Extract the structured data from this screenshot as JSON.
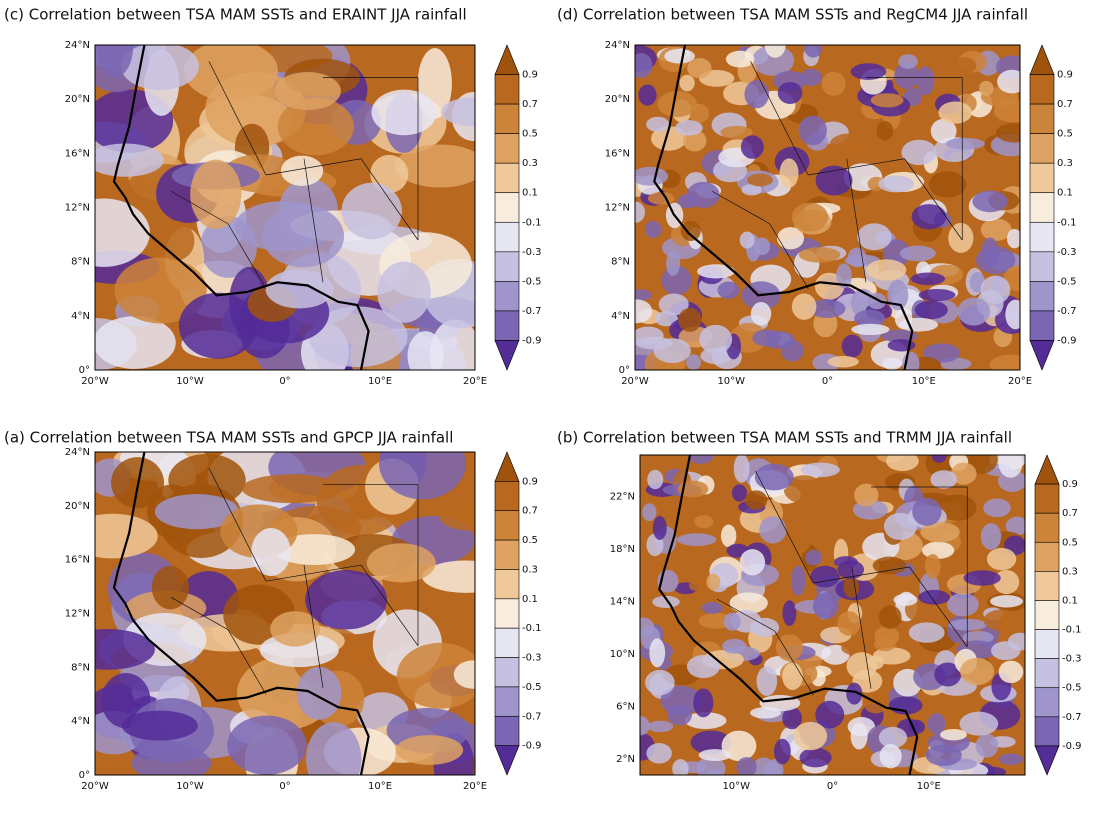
{
  "panels": [
    {
      "title": "(c) Correlation between TSA MAM SSTs and ERAINT JJA rainfall",
      "lat_labels": [
        "24°N",
        "20°N",
        "16°N",
        "12°N",
        "8°N",
        "4°N",
        "0°"
      ],
      "lon_labels": [
        "20°W",
        "10°W",
        "0°",
        "10°E",
        "20°E"
      ]
    },
    {
      "title": "(d) Correlation between TSA MAM SSTs and RegCM4 JJA rainfall",
      "lat_labels": [
        "24°N",
        "20°N",
        "16°N",
        "12°N",
        "8°N",
        "4°N",
        "0°"
      ],
      "lon_labels": [
        "20°W",
        "10°W",
        "0°",
        "10°E",
        "20°E"
      ]
    },
    {
      "title": "(a) Correlation between TSA MAM SSTs and GPCP JJA rainfall",
      "lat_labels": [
        "24°N",
        "20°N",
        "16°N",
        "12°N",
        "8°N",
        "4°N",
        "0°"
      ],
      "lon_labels": [
        "20°W",
        "10°W",
        "0°",
        "10°E",
        "20°E"
      ]
    },
    {
      "title": "(b) Correlation between TSA MAM SSTs and TRMM JJA rainfall",
      "lat_labels": [
        "22°N",
        "18°N",
        "14°N",
        "10°N",
        "6°N",
        "2°N"
      ],
      "lon_labels": [
        "10°W",
        "0°",
        "10°E"
      ]
    }
  ],
  "colorbar": {
    "labels": [
      "0.9",
      "0.7",
      "0.5",
      "0.3",
      "0.1",
      "-0.1",
      "-0.3",
      "-0.5",
      "-0.7",
      "-0.9"
    ]
  }
}
